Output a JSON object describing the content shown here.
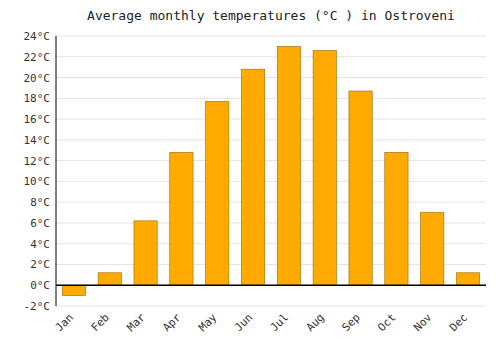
{
  "chart_data": {
    "type": "bar",
    "title": "Average monthly temperatures (°C ) in Ostroveni",
    "categories": [
      "Jan",
      "Feb",
      "Mar",
      "Apr",
      "May",
      "Jun",
      "Jul",
      "Aug",
      "Sep",
      "Oct",
      "Nov",
      "Dec"
    ],
    "values": [
      -1.0,
      1.2,
      6.2,
      12.8,
      17.7,
      20.8,
      23.0,
      22.6,
      18.7,
      12.8,
      7.0,
      1.2
    ],
    "color": "#FFAA00",
    "ylim": [
      -2,
      24
    ],
    "yticks": [
      {
        "value": -2,
        "label": "-2°C"
      },
      {
        "value": 0,
        "label": "0°C"
      },
      {
        "value": 2,
        "label": "2°C"
      },
      {
        "value": 4,
        "label": "4°C"
      },
      {
        "value": 6,
        "label": "6°C"
      },
      {
        "value": 8,
        "label": "8°C"
      },
      {
        "value": 10,
        "label": "10°C"
      },
      {
        "value": 12,
        "label": "12°C"
      },
      {
        "value": 14,
        "label": "14°C"
      },
      {
        "value": 16,
        "label": "16°C"
      },
      {
        "value": 18,
        "label": "18°C"
      },
      {
        "value": 20,
        "label": "20°C"
      },
      {
        "value": 22,
        "label": "22°C"
      },
      {
        "value": 24,
        "label": "24°C"
      }
    ],
    "grid": true
  }
}
